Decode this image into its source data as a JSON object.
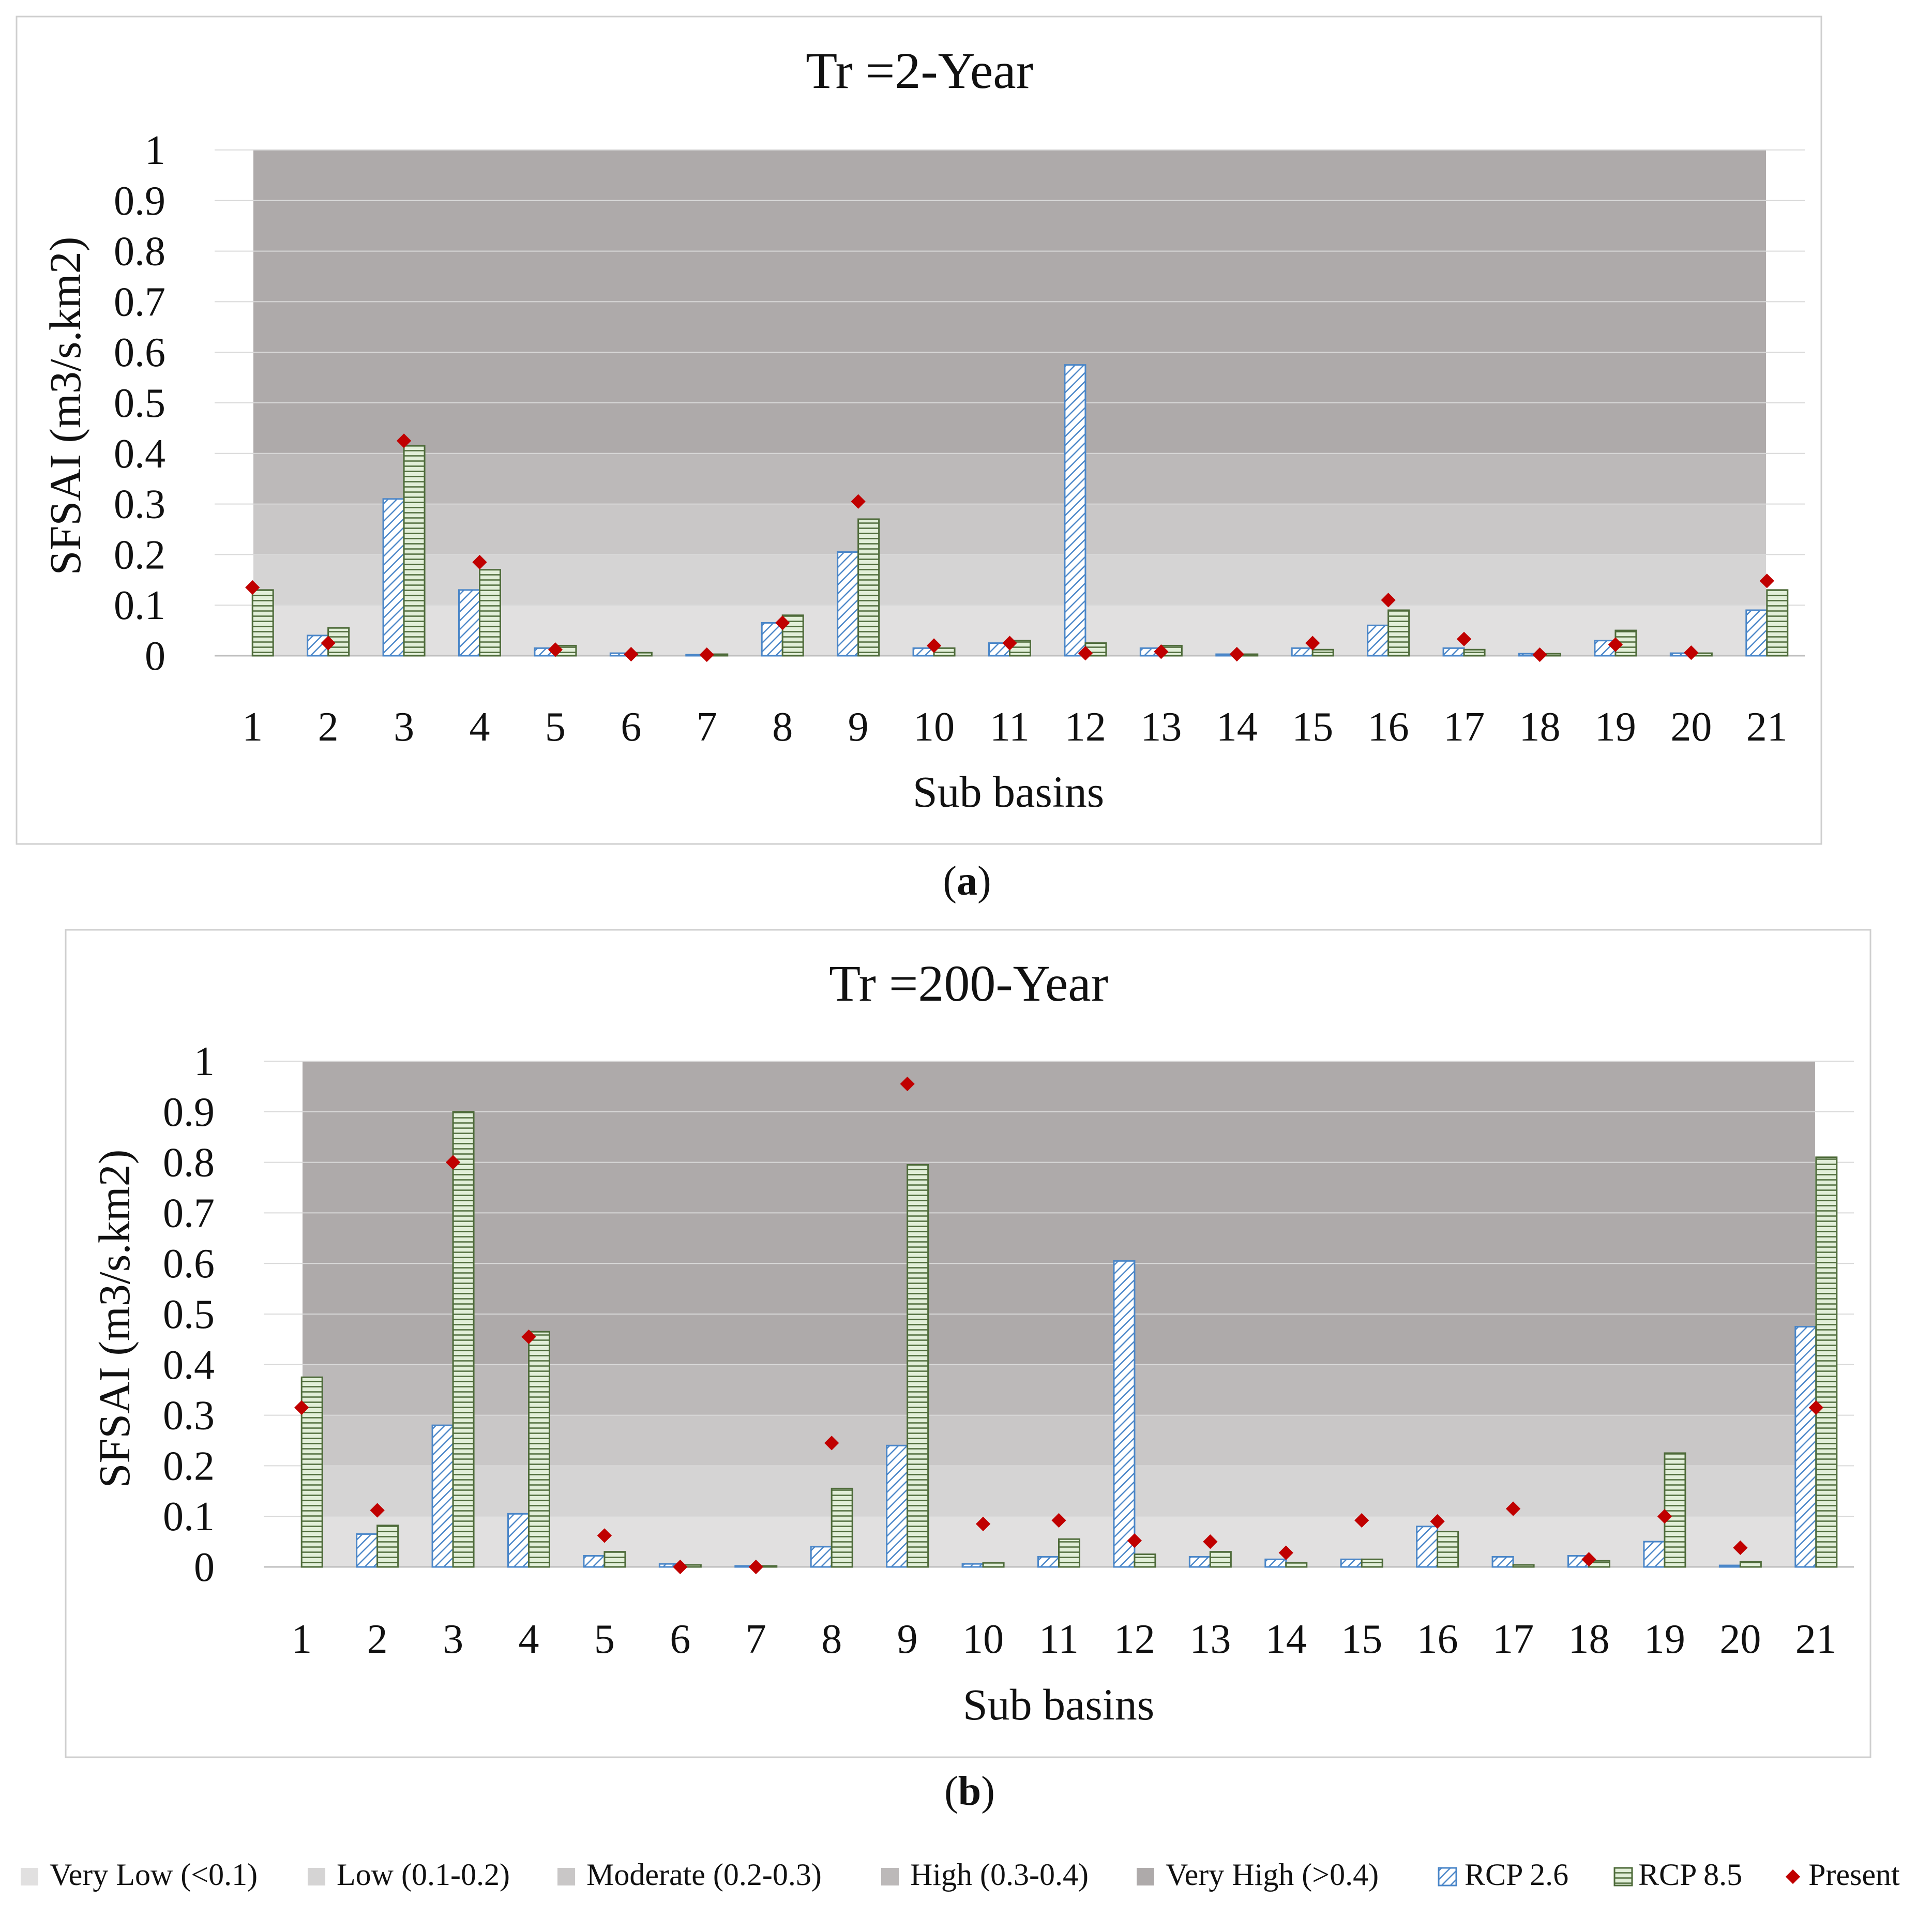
{
  "chart_data": [
    {
      "type": "bar",
      "title": "Tr =2-Year",
      "xlabel": "Sub basins",
      "ylabel": "SFSAI (m3/s.km2)",
      "ylim": [
        0,
        1
      ],
      "yticks": [
        "0",
        "0.1",
        "0.2",
        "0.3",
        "0.4",
        "0.5",
        "0.6",
        "0.7",
        "0.8",
        "0.9",
        "1"
      ],
      "categories": [
        "1",
        "2",
        "3",
        "4",
        "5",
        "6",
        "7",
        "8",
        "9",
        "10",
        "11",
        "12",
        "13",
        "14",
        "15",
        "16",
        "17",
        "18",
        "19",
        "20",
        "21"
      ],
      "series": [
        {
          "name": "RCP 2.6",
          "values": [
            0.0,
            0.04,
            0.31,
            0.13,
            0.015,
            0.005,
            0.002,
            0.065,
            0.205,
            0.015,
            0.025,
            0.575,
            0.015,
            0.003,
            0.015,
            0.06,
            0.015,
            0.004,
            0.03,
            0.005,
            0.09
          ]
        },
        {
          "name": "RCP 8.5",
          "values": [
            0.13,
            0.055,
            0.415,
            0.17,
            0.02,
            0.006,
            0.003,
            0.08,
            0.27,
            0.015,
            0.03,
            0.025,
            0.02,
            0.003,
            0.012,
            0.09,
            0.012,
            0.004,
            0.05,
            0.005,
            0.13
          ]
        },
        {
          "name": "Present",
          "values": [
            0.135,
            0.025,
            0.425,
            0.185,
            0.012,
            0.003,
            0.002,
            0.065,
            0.305,
            0.02,
            0.025,
            0.005,
            0.008,
            0.003,
            0.025,
            0.11,
            0.033,
            0.002,
            0.022,
            0.006,
            0.148
          ]
        }
      ],
      "caption": "a"
    },
    {
      "type": "bar",
      "title": "Tr =200-Year",
      "xlabel": "Sub basins",
      "ylabel": "SFSAI (m3/s.km2)",
      "ylim": [
        0,
        1
      ],
      "yticks": [
        "0",
        "0.1",
        "0.2",
        "0.3",
        "0.4",
        "0.5",
        "0.6",
        "0.7",
        "0.8",
        "0.9",
        "1"
      ],
      "categories": [
        "1",
        "2",
        "3",
        "4",
        "5",
        "6",
        "7",
        "8",
        "9",
        "10",
        "11",
        "12",
        "13",
        "14",
        "15",
        "16",
        "17",
        "18",
        "19",
        "20",
        "21"
      ],
      "series": [
        {
          "name": "RCP 2.6",
          "values": [
            0.0,
            0.065,
            0.28,
            0.105,
            0.022,
            0.006,
            0.002,
            0.04,
            0.24,
            0.006,
            0.02,
            0.605,
            0.02,
            0.015,
            0.015,
            0.08,
            0.02,
            0.022,
            0.05,
            0.003,
            0.475
          ]
        },
        {
          "name": "RCP 8.5",
          "values": [
            0.375,
            0.082,
            0.9,
            0.465,
            0.03,
            0.004,
            0.002,
            0.155,
            0.795,
            0.008,
            0.055,
            0.025,
            0.03,
            0.008,
            0.015,
            0.07,
            0.004,
            0.012,
            0.225,
            0.01,
            0.81
          ]
        },
        {
          "name": "Present",
          "values": [
            0.315,
            0.112,
            0.8,
            0.455,
            0.062,
            0.0,
            0.0,
            0.245,
            0.955,
            0.085,
            0.092,
            0.052,
            0.05,
            0.028,
            0.092,
            0.09,
            0.115,
            0.015,
            0.1,
            0.038,
            0.315
          ]
        }
      ],
      "caption": "b"
    }
  ],
  "risk_bands": [
    {
      "label": "Very Low (<0.1)",
      "from": 0.0,
      "to": 0.1,
      "color": "#e1e0e0"
    },
    {
      "label": "Low (0.1-0.2)",
      "from": 0.1,
      "to": 0.2,
      "color": "#d5d4d4"
    },
    {
      "label": "Moderate (0.2-0.3)",
      "from": 0.2,
      "to": 0.3,
      "color": "#c9c7c7"
    },
    {
      "label": "High (0.3-0.4)",
      "from": 0.3,
      "to": 0.4,
      "color": "#bcb9b9"
    },
    {
      "label": "Very High (>0.4)",
      "from": 0.4,
      "to": 1.0,
      "color": "#aeaaaa"
    }
  ],
  "legend": {
    "rcp26_label": "RCP 2.6",
    "rcp85_label": "RCP 8.5",
    "present_label": "Present"
  },
  "colors": {
    "rcp26": "#4a86c8",
    "rcp85": "#4e6b3a",
    "rcp85_fill": "#e2efd9",
    "present": "#c00000"
  }
}
